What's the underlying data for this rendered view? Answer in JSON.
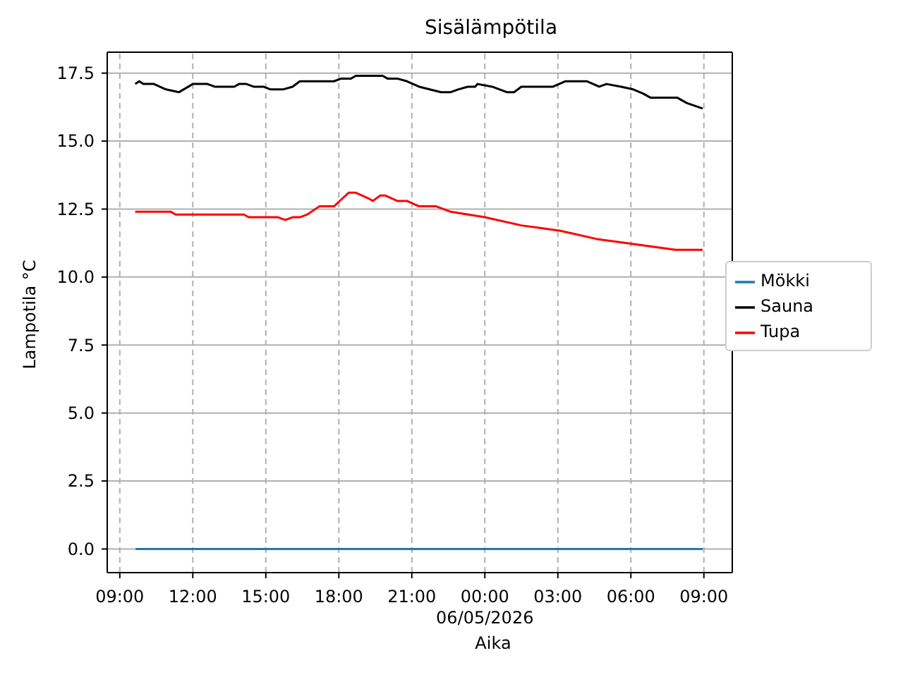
{
  "chart_data": {
    "type": "line",
    "title": "Sisälämpötila",
    "xlabel": "Aika",
    "ylabel": "Lampotila °C",
    "xlim": [
      "2026-05-05T08:29",
      "2026-05-06T10:10"
    ],
    "xticks": [
      {
        "value": "2026-05-05T09:00",
        "label": "09:00"
      },
      {
        "value": "2026-05-05T12:00",
        "label": "12:00"
      },
      {
        "value": "2026-05-05T15:00",
        "label": "15:00"
      },
      {
        "value": "2026-05-05T18:00",
        "label": "18:00"
      },
      {
        "value": "2026-05-05T21:00",
        "label": "21:00"
      },
      {
        "value": "2026-05-06T00:00",
        "label": "00:00\n06/05/2026"
      },
      {
        "value": "2026-05-06T03:00",
        "label": "03:00"
      },
      {
        "value": "2026-05-06T06:00",
        "label": "06:00"
      },
      {
        "value": "2026-05-06T09:00",
        "label": "09:00"
      }
    ],
    "ylim": [
      -0.87,
      18.27
    ],
    "yticks": [
      {
        "value": 0,
        "label": "0.0"
      },
      {
        "value": 2.5,
        "label": "2.5"
      },
      {
        "value": 5,
        "label": "5.0"
      },
      {
        "value": 7.5,
        "label": "7.5"
      },
      {
        "value": 10,
        "label": "10.0"
      },
      {
        "value": 12.5,
        "label": "12.5"
      },
      {
        "value": 15,
        "label": "15.0"
      },
      {
        "value": 17.5,
        "label": "17.5"
      }
    ],
    "grid": true,
    "legend": "right",
    "marker": "none",
    "line_style": "solid",
    "series": [
      {
        "name": "Mökki",
        "color": "#1f77b4",
        "x": [
          "2026-05-05T09:39",
          "2026-05-06T08:57"
        ],
        "values": [
          0,
          0
        ]
      },
      {
        "name": "Sauna",
        "color": "#000000",
        "x": [
          "2026-05-05T09:38",
          "2026-05-05T09:48",
          "2026-05-05T09:58",
          "2026-05-05T10:24",
          "2026-05-05T10:54",
          "2026-05-05T11:26",
          "2026-05-05T12:00",
          "2026-05-05T12:36",
          "2026-05-05T12:54",
          "2026-05-05T13:42",
          "2026-05-05T13:54",
          "2026-05-05T14:12",
          "2026-05-05T14:30",
          "2026-05-05T14:54",
          "2026-05-05T15:12",
          "2026-05-05T15:42",
          "2026-05-05T16:06",
          "2026-05-05T16:24",
          "2026-05-05T17:48",
          "2026-05-05T18:06",
          "2026-05-05T18:30",
          "2026-05-05T18:42",
          "2026-05-05T19:48",
          "2026-05-05T20:00",
          "2026-05-05T20:24",
          "2026-05-05T20:48",
          "2026-05-05T21:18",
          "2026-05-05T22:12",
          "2026-05-05T22:36",
          "2026-05-05T22:54",
          "2026-05-05T23:18",
          "2026-05-05T23:36",
          "2026-05-05T23:42",
          "2026-05-06T00:18",
          "2026-05-06T00:54",
          "2026-05-06T01:12",
          "2026-05-06T01:30",
          "2026-05-06T02:48",
          "2026-05-06T03:18",
          "2026-05-06T04:12",
          "2026-05-06T04:42",
          "2026-05-06T05:00",
          "2026-05-06T05:36",
          "2026-05-06T06:06",
          "2026-05-06T06:30",
          "2026-05-06T06:48",
          "2026-05-06T07:54",
          "2026-05-06T08:18",
          "2026-05-06T08:57"
        ],
        "values": [
          17.1,
          17.2,
          17.1,
          17.1,
          16.9,
          16.8,
          17.1,
          17.1,
          17.0,
          17.0,
          17.1,
          17.1,
          17.0,
          17.0,
          16.9,
          16.9,
          17.0,
          17.2,
          17.2,
          17.3,
          17.3,
          17.4,
          17.4,
          17.3,
          17.3,
          17.2,
          17.0,
          16.8,
          16.8,
          16.9,
          17.0,
          17.0,
          17.1,
          17.0,
          16.8,
          16.8,
          17.0,
          17.0,
          17.2,
          17.2,
          17.0,
          17.1,
          17.0,
          16.9,
          16.75,
          16.6,
          16.6,
          16.4,
          16.2
        ]
      },
      {
        "name": "Tupa",
        "color": "#ff0000",
        "x": [
          "2026-05-05T09:38",
          "2026-05-05T11:06",
          "2026-05-05T11:18",
          "2026-05-05T14:06",
          "2026-05-05T14:18",
          "2026-05-05T15:30",
          "2026-05-05T15:48",
          "2026-05-05T16:06",
          "2026-05-05T16:24",
          "2026-05-05T16:42",
          "2026-05-05T17:12",
          "2026-05-05T17:48",
          "2026-05-05T18:06",
          "2026-05-05T18:24",
          "2026-05-05T18:42",
          "2026-05-05T19:12",
          "2026-05-05T19:24",
          "2026-05-05T19:42",
          "2026-05-05T19:54",
          "2026-05-05T20:24",
          "2026-05-05T20:48",
          "2026-05-05T21:18",
          "2026-05-05T21:30",
          "2026-05-05T22:00",
          "2026-05-05T22:36",
          "2026-05-06T00:00",
          "2026-05-06T01:30",
          "2026-05-06T03:06",
          "2026-05-06T04:36",
          "2026-05-06T06:12",
          "2026-05-06T07:50",
          "2026-05-06T08:57"
        ],
        "values": [
          12.4,
          12.4,
          12.3,
          12.3,
          12.2,
          12.2,
          12.1,
          12.2,
          12.2,
          12.3,
          12.6,
          12.6,
          12.85,
          13.1,
          13.1,
          12.9,
          12.8,
          13.0,
          13.0,
          12.8,
          12.8,
          12.6,
          12.6,
          12.6,
          12.4,
          12.2,
          11.9,
          11.7,
          11.4,
          11.2,
          11.0,
          11.0
        ]
      }
    ]
  }
}
